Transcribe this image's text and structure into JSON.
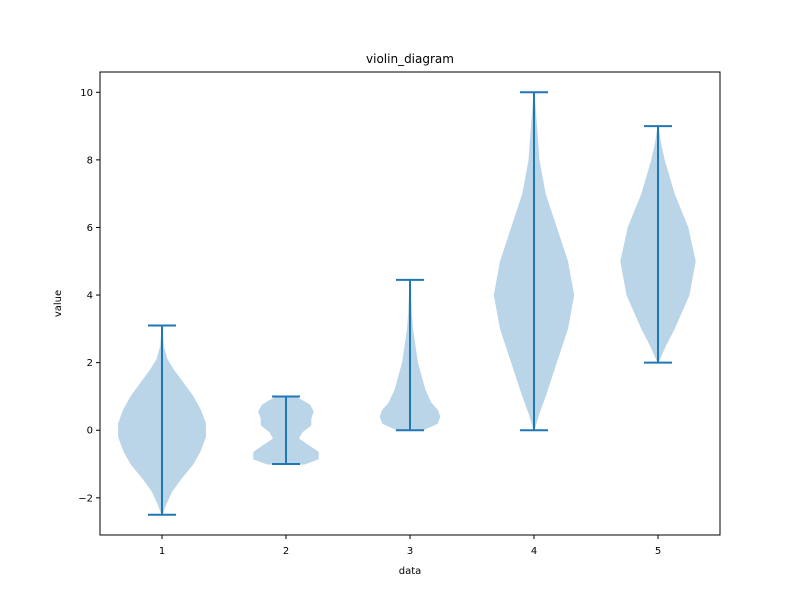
{
  "chart_data": {
    "type": "violin",
    "title": "violin_diagram",
    "xlabel": "data",
    "ylabel": "value",
    "categories": [
      "1",
      "2",
      "3",
      "4",
      "5"
    ],
    "xlim": [
      0.5,
      5.5
    ],
    "ylim": [
      -3.1,
      10.6
    ],
    "yticks": [
      -2,
      0,
      2,
      4,
      6,
      8,
      10
    ],
    "yticklabels": [
      "−2",
      "0",
      "2",
      "4",
      "6",
      "8",
      "10"
    ],
    "grid": false,
    "colors": {
      "body": "#bad4e8",
      "line": "#1f77b4"
    },
    "series": [
      {
        "x": 1,
        "min": -2.5,
        "max": 3.1,
        "density": [
          [
            -2.5,
            0.0
          ],
          [
            -2.2,
            0.03
          ],
          [
            -1.8,
            0.08
          ],
          [
            -1.4,
            0.16
          ],
          [
            -1.0,
            0.25
          ],
          [
            -0.6,
            0.31
          ],
          [
            -0.2,
            0.35
          ],
          [
            0.2,
            0.35
          ],
          [
            0.6,
            0.31
          ],
          [
            1.0,
            0.25
          ],
          [
            1.4,
            0.17
          ],
          [
            1.8,
            0.09
          ],
          [
            2.1,
            0.04
          ],
          [
            2.5,
            0.01
          ],
          [
            3.1,
            0.0
          ]
        ]
      },
      {
        "x": 2,
        "min": -1.0,
        "max": 1.0,
        "density": [
          [
            -1.0,
            0.15
          ],
          [
            -0.85,
            0.26
          ],
          [
            -0.65,
            0.26
          ],
          [
            -0.45,
            0.18
          ],
          [
            -0.25,
            0.1
          ],
          [
            -0.05,
            0.13
          ],
          [
            0.15,
            0.2
          ],
          [
            0.35,
            0.2
          ],
          [
            0.55,
            0.22
          ],
          [
            0.75,
            0.19
          ],
          [
            0.9,
            0.12
          ],
          [
            1.0,
            0.07
          ]
        ]
      },
      {
        "x": 3,
        "min": 0.0,
        "max": 4.45,
        "density": [
          [
            0.0,
            0.1
          ],
          [
            0.2,
            0.22
          ],
          [
            0.4,
            0.24
          ],
          [
            0.6,
            0.22
          ],
          [
            0.8,
            0.17
          ],
          [
            1.2,
            0.12
          ],
          [
            1.6,
            0.09
          ],
          [
            2.0,
            0.06
          ],
          [
            2.5,
            0.04
          ],
          [
            3.0,
            0.02
          ],
          [
            3.5,
            0.01
          ],
          [
            4.0,
            0.005
          ],
          [
            4.45,
            0.0
          ]
        ]
      },
      {
        "x": 4,
        "min": 0.0,
        "max": 10.0,
        "density": [
          [
            0.0,
            0.0
          ],
          [
            0.5,
            0.04
          ],
          [
            1.0,
            0.09
          ],
          [
            2.0,
            0.18
          ],
          [
            3.0,
            0.27
          ],
          [
            4.0,
            0.32
          ],
          [
            5.0,
            0.27
          ],
          [
            6.0,
            0.18
          ],
          [
            7.0,
            0.09
          ],
          [
            8.0,
            0.04
          ],
          [
            9.0,
            0.02
          ],
          [
            9.5,
            0.01
          ],
          [
            10.0,
            0.0
          ]
        ]
      },
      {
        "x": 5,
        "min": 2.0,
        "max": 9.0,
        "density": [
          [
            2.0,
            0.0
          ],
          [
            2.5,
            0.06
          ],
          [
            3.0,
            0.13
          ],
          [
            4.0,
            0.25
          ],
          [
            5.0,
            0.3
          ],
          [
            6.0,
            0.24
          ],
          [
            7.0,
            0.13
          ],
          [
            8.0,
            0.05
          ],
          [
            8.5,
            0.02
          ],
          [
            9.0,
            0.0
          ]
        ]
      }
    ]
  }
}
